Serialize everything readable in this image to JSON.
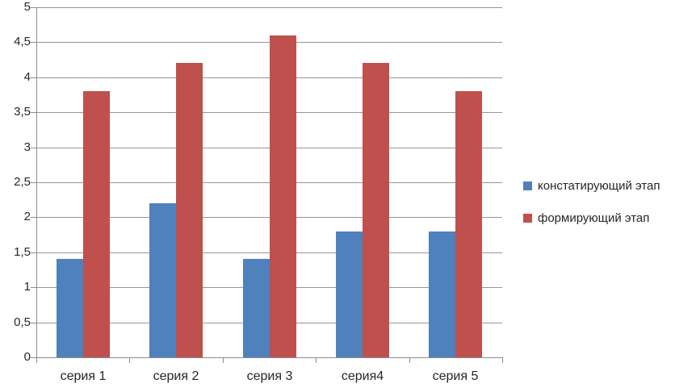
{
  "chart_data": {
    "type": "bar",
    "categories": [
      "серия 1",
      "серия 2",
      "серия 3",
      "серия4",
      "серия 5"
    ],
    "series": [
      {
        "name": "констатирующий этап",
        "color": "#4F81BD",
        "values": [
          1.4,
          2.2,
          1.4,
          1.8,
          1.8
        ]
      },
      {
        "name": "формирующий этап",
        "color": "#C0504D",
        "values": [
          3.8,
          4.2,
          4.6,
          4.2,
          3.8
        ]
      }
    ],
    "title": "",
    "xlabel": "",
    "ylabel": "",
    "ylim": [
      0,
      5
    ],
    "ytick_step": 0.5,
    "ytick_labels": [
      "0",
      "0,5",
      "1",
      "1,5",
      "2",
      "2,5",
      "3",
      "3,5",
      "4",
      "4,5",
      "5"
    ],
    "grid": true,
    "legend_position": "right",
    "gap_width_ratio": 1.5
  },
  "colors": {
    "background": "#FFFFFF",
    "gridline": "#969696",
    "axis": "#8C8C8C",
    "text": "#262626"
  }
}
